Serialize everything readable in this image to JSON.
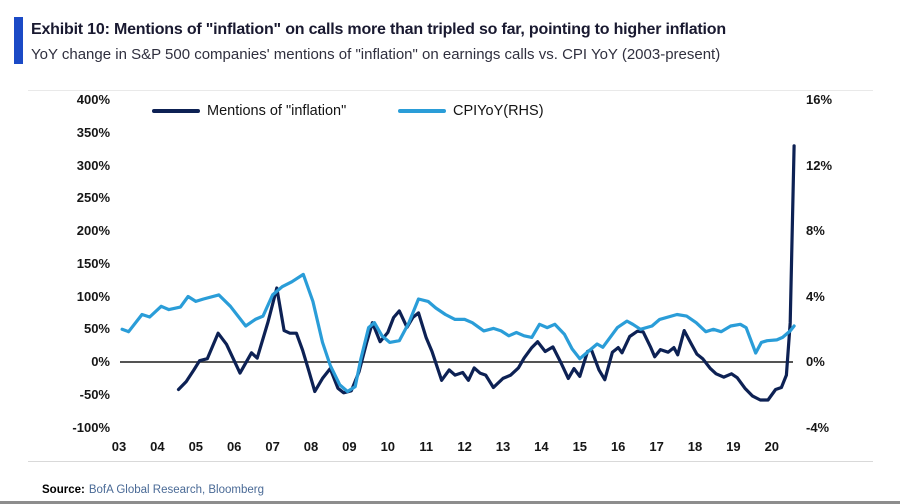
{
  "header": {
    "exhibit_title": "Exhibit 10: Mentions of \"inflation\" on calls more than tripled so far, pointing to higher inflation",
    "subtitle": "YoY change in S&P 500 companies' mentions of \"inflation\" on earnings calls vs. CPI YoY (2003-present)",
    "accent_color": "#1b4ac6"
  },
  "footer": {
    "source_label": "Source:",
    "source_text": "BofA Global Research, Bloomberg"
  },
  "chart_data": {
    "type": "line",
    "title": "Exhibit 10: Mentions of \"inflation\" on calls more than tripled so far, pointing to higher inflation",
    "subtitle": "YoY change in S&P 500 companies' mentions of \"inflation\" on earnings calls vs. CPI YoY (2003-present)",
    "legend_position": "top",
    "grid": false,
    "zero_line": true,
    "zero_line_color": "#3c3c3c",
    "left_axis": {
      "ticks": [
        "400%",
        "350%",
        "300%",
        "250%",
        "200%",
        "150%",
        "100%",
        "50%",
        "0%",
        "-50%",
        "-100%"
      ],
      "values": [
        400,
        350,
        300,
        250,
        200,
        150,
        100,
        50,
        0,
        -50,
        -100
      ],
      "range": [
        -100,
        400
      ],
      "unit": "%"
    },
    "right_axis": {
      "ticks": [
        "16%",
        "12%",
        "8%",
        "4%",
        "0%",
        "-4%"
      ],
      "values": [
        16,
        12,
        8,
        4,
        0,
        -4
      ],
      "range": [
        -4,
        16
      ],
      "unit": "%"
    },
    "x_axis": {
      "labels": [
        "03",
        "04",
        "05",
        "06",
        "07",
        "08",
        "09",
        "10",
        "11",
        "12",
        "13",
        "14",
        "15",
        "16",
        "17",
        "18",
        "19",
        "20"
      ],
      "years": [
        2003,
        2004,
        2005,
        2006,
        2007,
        2008,
        2009,
        2010,
        2011,
        2012,
        2013,
        2014,
        2015,
        2016,
        2017,
        2018,
        2019,
        2020
      ],
      "range": [
        2003.0,
        2021.0
      ]
    },
    "legend": [
      {
        "label": "Mentions of \"inflation\"",
        "color": "#0d2154"
      },
      {
        "label": "CPIYoY(RHS)",
        "color": "#2a9dd8"
      }
    ],
    "series": [
      {
        "name": "Mentions of \"inflation\"",
        "axis": "left",
        "color": "#0d2154",
        "points": [
          [
            2004.55,
            -42
          ],
          [
            2004.75,
            -30
          ],
          [
            2004.95,
            -12
          ],
          [
            2005.1,
            2
          ],
          [
            2005.3,
            5
          ],
          [
            2005.58,
            44
          ],
          [
            2005.8,
            27
          ],
          [
            2006.15,
            -17
          ],
          [
            2006.45,
            14
          ],
          [
            2006.6,
            6
          ],
          [
            2006.88,
            61
          ],
          [
            2007.11,
            113
          ],
          [
            2007.3,
            48
          ],
          [
            2007.45,
            44
          ],
          [
            2007.62,
            44
          ],
          [
            2007.78,
            18
          ],
          [
            2007.95,
            -15
          ],
          [
            2008.1,
            -45
          ],
          [
            2008.3,
            -25
          ],
          [
            2008.5,
            -10
          ],
          [
            2008.7,
            -40
          ],
          [
            2008.85,
            -47
          ],
          [
            2009.05,
            -44
          ],
          [
            2009.25,
            -15
          ],
          [
            2009.45,
            30
          ],
          [
            2009.6,
            60
          ],
          [
            2009.8,
            31
          ],
          [
            2010.0,
            45
          ],
          [
            2010.15,
            68
          ],
          [
            2010.3,
            78
          ],
          [
            2010.5,
            53
          ],
          [
            2010.65,
            68
          ],
          [
            2010.8,
            75
          ],
          [
            2011.0,
            37
          ],
          [
            2011.15,
            16
          ],
          [
            2011.4,
            -28
          ],
          [
            2011.6,
            -12
          ],
          [
            2011.75,
            -20
          ],
          [
            2011.95,
            -16
          ],
          [
            2012.1,
            -28
          ],
          [
            2012.25,
            -9
          ],
          [
            2012.4,
            -17
          ],
          [
            2012.55,
            -20
          ],
          [
            2012.75,
            -39
          ],
          [
            2013.0,
            -25
          ],
          [
            2013.2,
            -20
          ],
          [
            2013.4,
            -9
          ],
          [
            2013.55,
            6
          ],
          [
            2013.75,
            22
          ],
          [
            2013.9,
            31
          ],
          [
            2014.1,
            16
          ],
          [
            2014.3,
            23
          ],
          [
            2014.5,
            0
          ],
          [
            2014.7,
            -25
          ],
          [
            2014.85,
            -10
          ],
          [
            2015.0,
            -22
          ],
          [
            2015.2,
            16
          ],
          [
            2015.3,
            19
          ],
          [
            2015.5,
            -12
          ],
          [
            2015.65,
            -27
          ],
          [
            2015.85,
            15
          ],
          [
            2016.0,
            22
          ],
          [
            2016.1,
            14
          ],
          [
            2016.3,
            39
          ],
          [
            2016.5,
            47
          ],
          [
            2016.65,
            46
          ],
          [
            2016.85,
            22
          ],
          [
            2016.95,
            8
          ],
          [
            2017.1,
            19
          ],
          [
            2017.3,
            15
          ],
          [
            2017.45,
            22
          ],
          [
            2017.55,
            11
          ],
          [
            2017.72,
            48
          ],
          [
            2017.9,
            28
          ],
          [
            2018.05,
            12
          ],
          [
            2018.2,
            5
          ],
          [
            2018.4,
            -10
          ],
          [
            2018.55,
            -18
          ],
          [
            2018.75,
            -23
          ],
          [
            2018.95,
            -18
          ],
          [
            2019.1,
            -24
          ],
          [
            2019.3,
            -40
          ],
          [
            2019.5,
            -52
          ],
          [
            2019.7,
            -58
          ],
          [
            2019.9,
            -58
          ],
          [
            2020.1,
            -42
          ],
          [
            2020.25,
            -39
          ],
          [
            2020.38,
            -20
          ],
          [
            2020.48,
            60
          ],
          [
            2020.58,
            330
          ]
        ]
      },
      {
        "name": "CPIYoY(RHS)",
        "axis": "right",
        "color": "#2a9dd8",
        "points": [
          [
            2003.08,
            2.0
          ],
          [
            2003.25,
            1.85
          ],
          [
            2003.6,
            2.9
          ],
          [
            2003.8,
            2.75
          ],
          [
            2004.1,
            3.4
          ],
          [
            2004.3,
            3.2
          ],
          [
            2004.6,
            3.35
          ],
          [
            2004.8,
            4.0
          ],
          [
            2005.0,
            3.7
          ],
          [
            2005.2,
            3.85
          ],
          [
            2005.6,
            4.1
          ],
          [
            2005.9,
            3.4
          ],
          [
            2006.3,
            2.2
          ],
          [
            2006.55,
            2.6
          ],
          [
            2006.75,
            2.8
          ],
          [
            2007.0,
            4.1
          ],
          [
            2007.25,
            4.6
          ],
          [
            2007.5,
            4.9
          ],
          [
            2007.8,
            5.35
          ],
          [
            2008.05,
            3.7
          ],
          [
            2008.3,
            1.2
          ],
          [
            2008.5,
            -0.2
          ],
          [
            2008.75,
            -1.4
          ],
          [
            2008.95,
            -1.8
          ],
          [
            2009.15,
            -1.5
          ],
          [
            2009.3,
            0.2
          ],
          [
            2009.5,
            2.1
          ],
          [
            2009.65,
            2.4
          ],
          [
            2009.85,
            1.6
          ],
          [
            2010.05,
            1.2
          ],
          [
            2010.3,
            1.3
          ],
          [
            2010.55,
            2.4
          ],
          [
            2010.8,
            3.85
          ],
          [
            2011.05,
            3.7
          ],
          [
            2011.25,
            3.3
          ],
          [
            2011.5,
            2.9
          ],
          [
            2011.75,
            2.6
          ],
          [
            2012.0,
            2.6
          ],
          [
            2012.2,
            2.4
          ],
          [
            2012.5,
            1.9
          ],
          [
            2012.75,
            2.05
          ],
          [
            2012.95,
            1.9
          ],
          [
            2013.15,
            1.6
          ],
          [
            2013.35,
            1.8
          ],
          [
            2013.55,
            1.6
          ],
          [
            2013.75,
            1.5
          ],
          [
            2013.95,
            2.3
          ],
          [
            2014.15,
            2.1
          ],
          [
            2014.35,
            2.3
          ],
          [
            2014.6,
            1.7
          ],
          [
            2014.8,
            0.8
          ],
          [
            2015.0,
            0.2
          ],
          [
            2015.25,
            0.7
          ],
          [
            2015.45,
            1.1
          ],
          [
            2015.6,
            0.9
          ],
          [
            2015.98,
            2.1
          ],
          [
            2016.23,
            2.5
          ],
          [
            2016.38,
            2.3
          ],
          [
            2016.58,
            2.0
          ],
          [
            2016.88,
            2.2
          ],
          [
            2017.08,
            2.6
          ],
          [
            2017.53,
            2.9
          ],
          [
            2017.78,
            2.8
          ],
          [
            2018.03,
            2.4
          ],
          [
            2018.28,
            1.85
          ],
          [
            2018.48,
            2.0
          ],
          [
            2018.68,
            1.85
          ],
          [
            2018.93,
            2.2
          ],
          [
            2019.18,
            2.3
          ],
          [
            2019.33,
            2.1
          ],
          [
            2019.58,
            0.55
          ],
          [
            2019.73,
            1.2
          ],
          [
            2019.88,
            1.3
          ],
          [
            2020.13,
            1.35
          ],
          [
            2020.28,
            1.5
          ],
          [
            2020.48,
            1.9
          ],
          [
            2020.58,
            2.2
          ]
        ]
      }
    ]
  }
}
